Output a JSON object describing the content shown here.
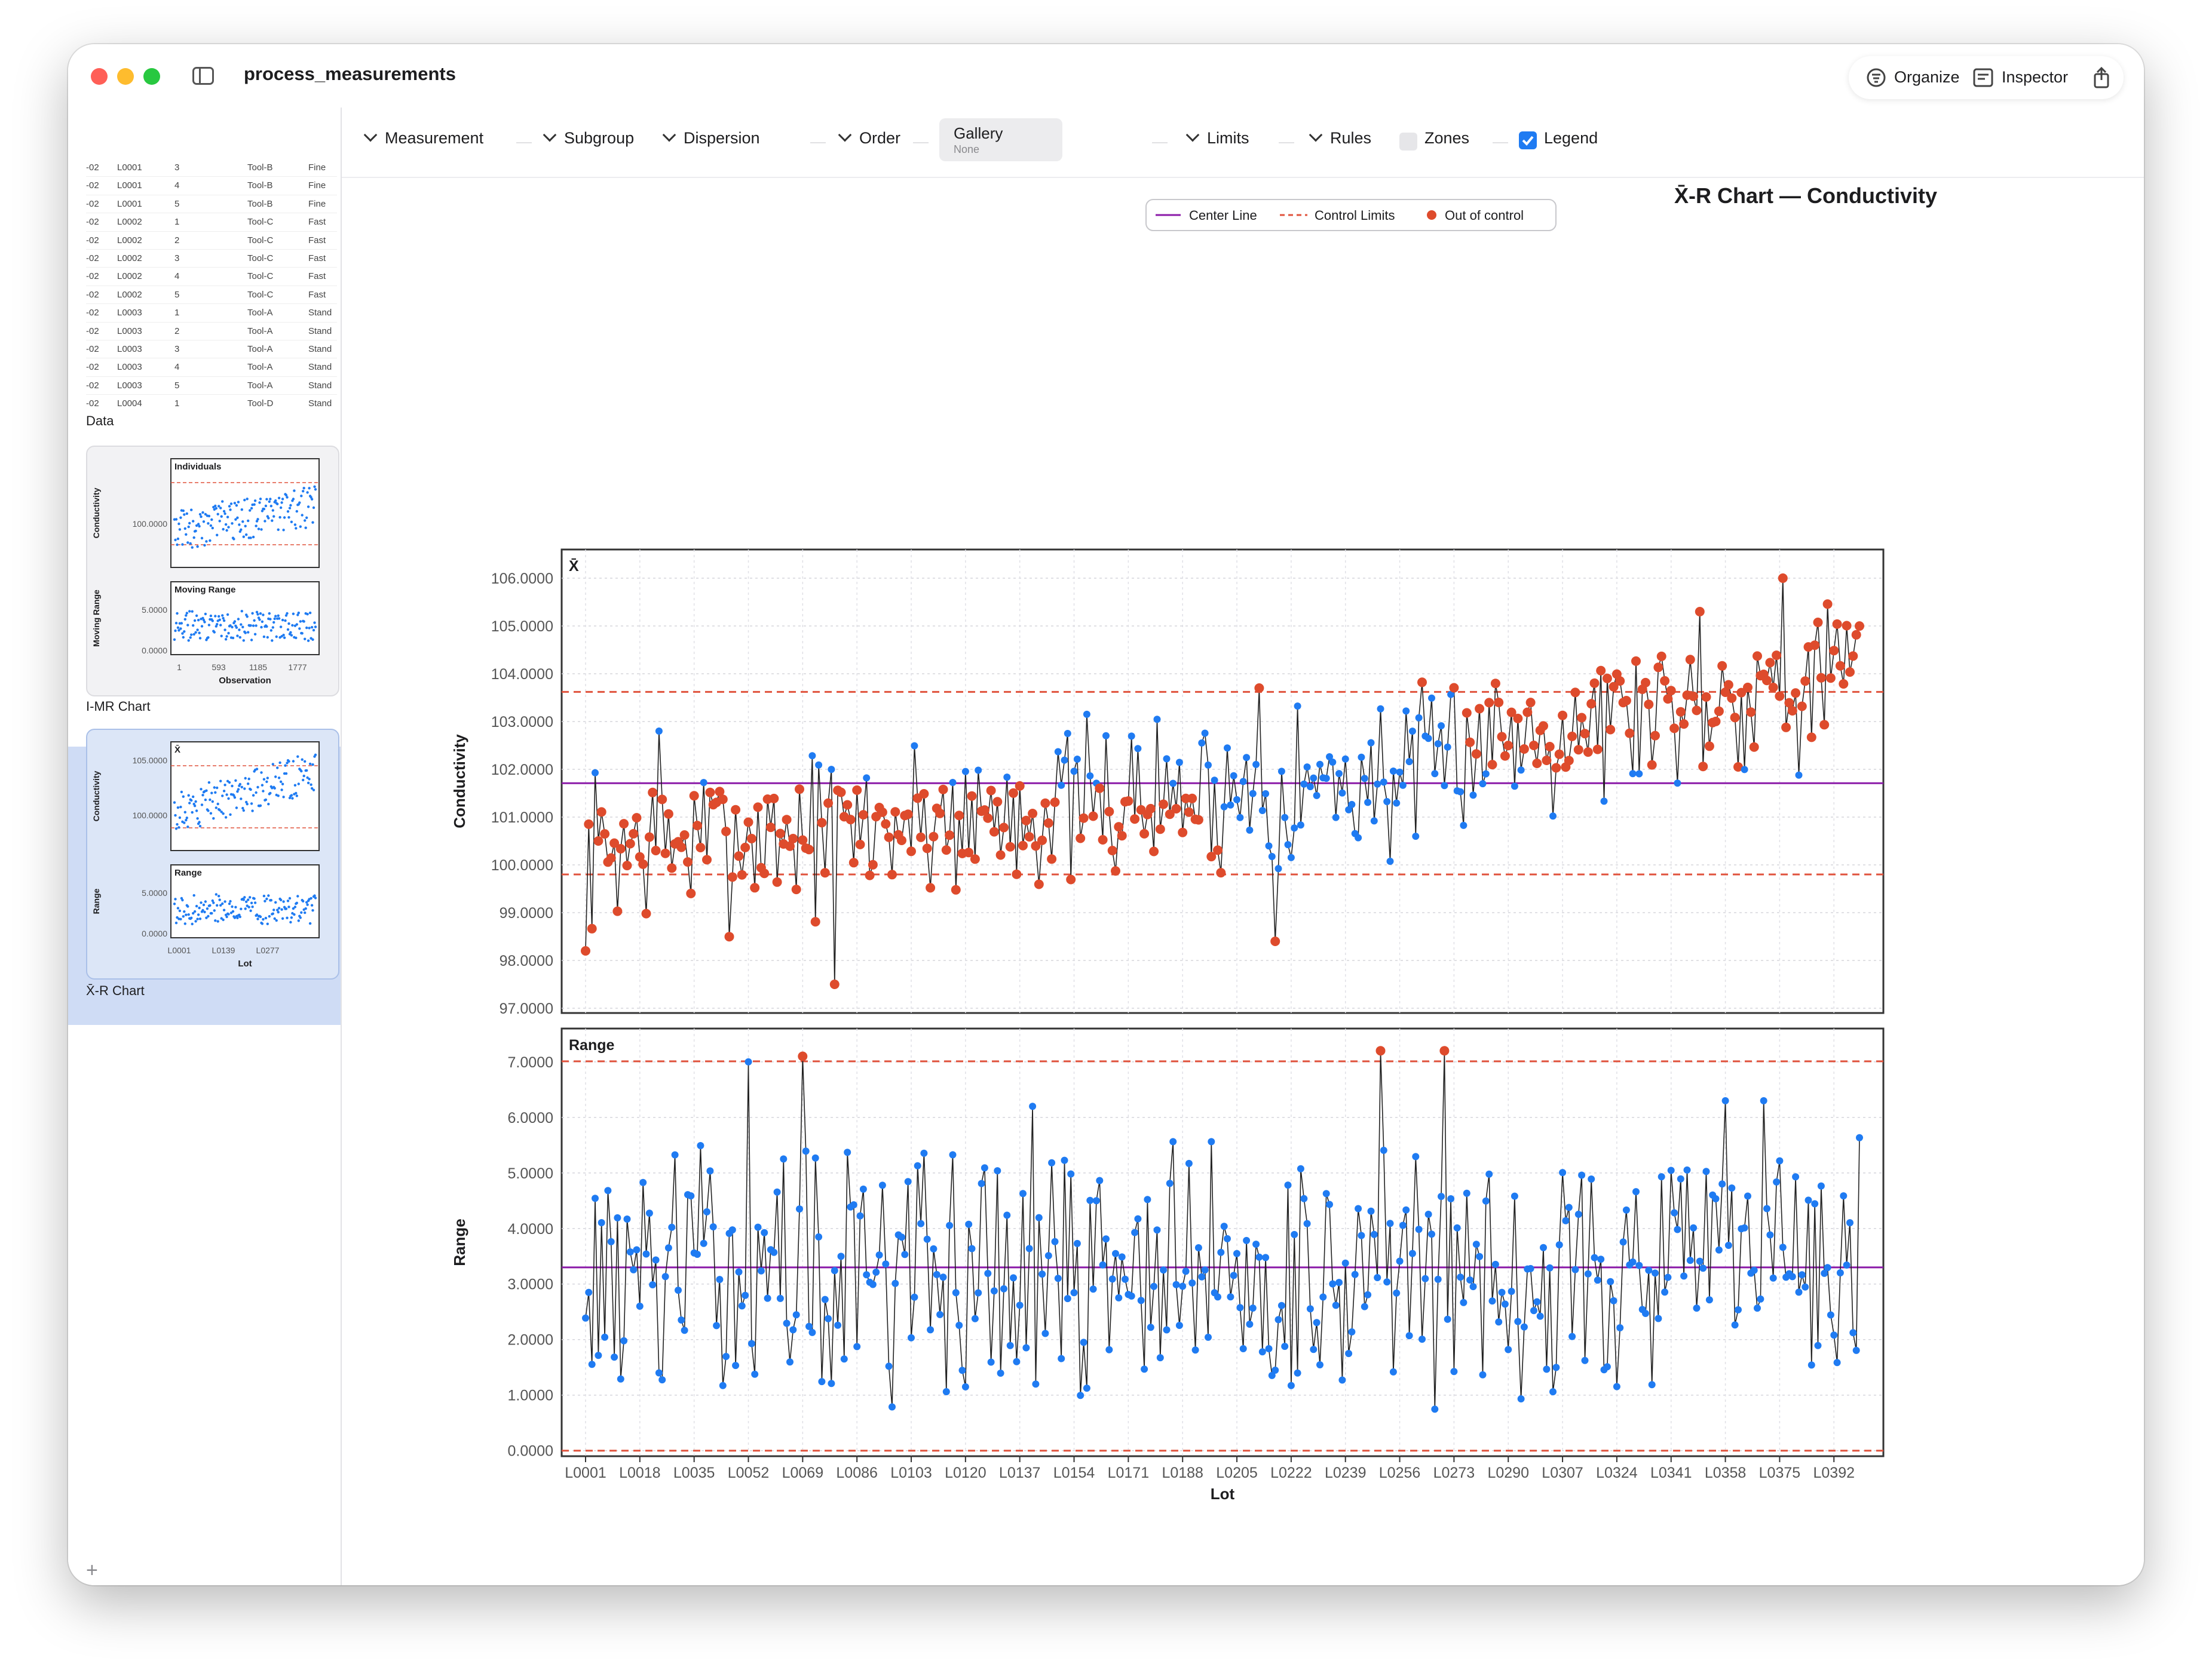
{
  "window": {
    "title": "process_measurements"
  },
  "titlebar_right": {
    "organize_label": "Organize",
    "inspector_label": "Inspector",
    "share_icon": "share-icon"
  },
  "sidebar": {
    "data_rows": [
      [
        "-02",
        "L0001",
        "3",
        "Tool-B",
        "Fine"
      ],
      [
        "-02",
        "L0001",
        "4",
        "Tool-B",
        "Fine"
      ],
      [
        "-02",
        "L0001",
        "5",
        "Tool-B",
        "Fine"
      ],
      [
        "-02",
        "L0002",
        "1",
        "Tool-C",
        "Fast"
      ],
      [
        "-02",
        "L0002",
        "2",
        "Tool-C",
        "Fast"
      ],
      [
        "-02",
        "L0002",
        "3",
        "Tool-C",
        "Fast"
      ],
      [
        "-02",
        "L0002",
        "4",
        "Tool-C",
        "Fast"
      ],
      [
        "-02",
        "L0002",
        "5",
        "Tool-C",
        "Fast"
      ],
      [
        "-02",
        "L0003",
        "1",
        "Tool-A",
        "Stand"
      ],
      [
        "-02",
        "L0003",
        "2",
        "Tool-A",
        "Stand"
      ],
      [
        "-02",
        "L0003",
        "3",
        "Tool-A",
        "Stand"
      ],
      [
        "-02",
        "L0003",
        "4",
        "Tool-A",
        "Stand"
      ],
      [
        "-02",
        "L0003",
        "5",
        "Tool-A",
        "Stand"
      ],
      [
        "-02",
        "L0004",
        "1",
        "Tool-D",
        "Stand"
      ]
    ],
    "data_label": "Data",
    "imr_label": "I-MR Chart",
    "xr_label": "X̄-R Chart",
    "imr_thumb": {
      "top_title": "Individuals",
      "top_ylabel": "Conductivity",
      "top_tick": "100.0000",
      "bottom_title": "Moving Range",
      "bottom_ylabel": "Moving Range",
      "bottom_ticks": [
        "5.0000",
        "0.0000"
      ],
      "x_ticks": [
        "1",
        "593",
        "1185",
        "1777"
      ],
      "xlabel": "Observation"
    },
    "xr_thumb": {
      "top_title": "X̄",
      "top_ylabel": "Conductivity",
      "top_ticks": [
        "105.0000",
        "100.0000"
      ],
      "bottom_title": "Range",
      "bottom_ylabel": "Range",
      "bottom_ticks": [
        "5.0000",
        "0.0000"
      ],
      "x_ticks": [
        "L0001",
        "L0139",
        "L0277"
      ],
      "xlabel": "Lot"
    },
    "add_label": "+"
  },
  "toolbar": {
    "measurement": "Measurement",
    "subgroup": "Subgroup",
    "dispersion": "Dispersion",
    "order": "Order",
    "gallery_title": "Gallery",
    "gallery_value": "None",
    "limits": "Limits",
    "rules": "Rules",
    "zones": "Zones",
    "legend": "Legend"
  },
  "chart_data": {
    "type": "line",
    "title": "X̄-R Chart — Conductivity",
    "legend": {
      "entries": [
        "Center Line",
        "Control Limits",
        "Out of control"
      ],
      "placement": "top-center"
    },
    "colors": {
      "point": "#1f7bf2",
      "out_of_control": "#de4b2c",
      "center_line": "#8b1aa8",
      "control_limits": "#e0533d",
      "line": "#222222"
    },
    "xlabel": "Lot",
    "x_ticks": [
      "L0001",
      "L0018",
      "L0035",
      "L0052",
      "L0069",
      "L0086",
      "L0103",
      "L0120",
      "L0137",
      "L0154",
      "L0171",
      "L0188",
      "L0205",
      "L0222",
      "L0239",
      "L0256",
      "L0273",
      "L0290",
      "L0307",
      "L0324",
      "L0341",
      "L0358",
      "L0375",
      "L0392"
    ],
    "subgroup_count": 400,
    "grid": true,
    "xbar": {
      "panel_title": "X̄",
      "ylabel": "Conductivity",
      "ylim": [
        96.9,
        106.6
      ],
      "y_ticks": [
        "106.0000",
        "105.0000",
        "104.0000",
        "103.0000",
        "102.0000",
        "101.0000",
        "100.0000",
        "99.0000",
        "98.0000",
        "97.0000"
      ],
      "center_line": 101.71,
      "ucl": 103.62,
      "lcl": 99.8,
      "trend": {
        "start": 100.3,
        "step_start_lot": 270,
        "step_end_lot": 400,
        "end": 104.1,
        "mid": 101.9
      },
      "noise_amplitude": 1.3,
      "seed": 7,
      "highlights": [
        {
          "lot": 1,
          "value": 98.2
        },
        {
          "lot": 79,
          "value": 97.5
        },
        {
          "lot": 24,
          "value": 102.8
        },
        {
          "lot": 212,
          "value": 103.7
        },
        {
          "lot": 217,
          "value": 98.4
        },
        {
          "lot": 350,
          "value": 105.3
        },
        {
          "lot": 376,
          "value": 106.0
        }
      ]
    },
    "range": {
      "panel_title": "Range",
      "ylabel": "Range",
      "ylim": [
        -0.1,
        7.6
      ],
      "y_ticks": [
        "7.0000",
        "6.0000",
        "5.0000",
        "4.0000",
        "3.0000",
        "2.0000",
        "1.0000",
        "0.0000"
      ],
      "center_line": 3.3,
      "ucl": 7.01,
      "lcl": 0.0,
      "mean": 3.2,
      "amplitude": 1.35,
      "seed": 13,
      "highlights": [
        {
          "lot": 52,
          "value": 7.0
        },
        {
          "lot": 69,
          "value": 7.1
        },
        {
          "lot": 250,
          "value": 7.2
        },
        {
          "lot": 270,
          "value": 7.2
        },
        {
          "lot": 141,
          "value": 6.2
        },
        {
          "lot": 358,
          "value": 6.3
        },
        {
          "lot": 370,
          "value": 6.3
        }
      ]
    }
  }
}
